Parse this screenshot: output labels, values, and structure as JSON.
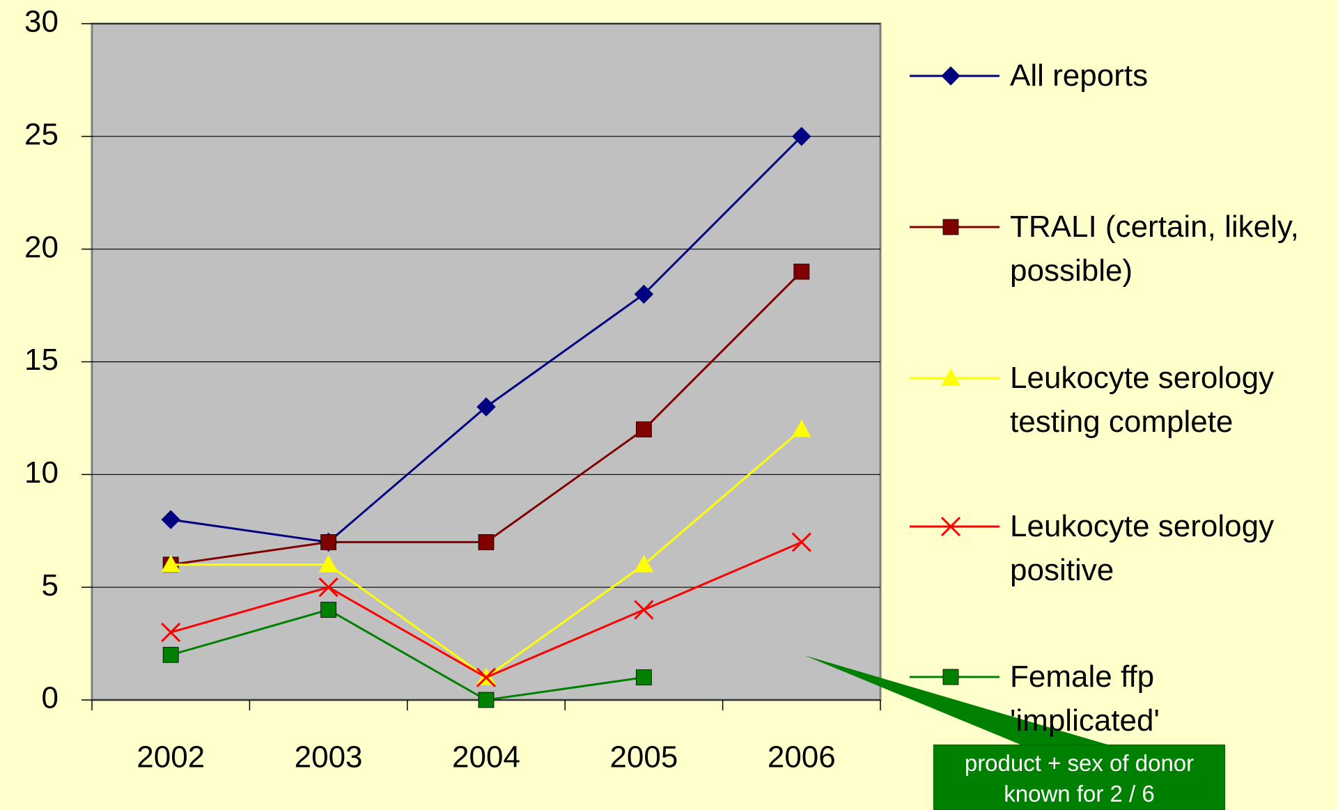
{
  "chart_data": {
    "type": "line",
    "categories": [
      "2002",
      "2003",
      "2004",
      "2005",
      "2006"
    ],
    "series": [
      {
        "name": "All reports",
        "color": "#000080",
        "marker": "diamond",
        "values": [
          8,
          7,
          13,
          18,
          25
        ]
      },
      {
        "name": "TRALI (certain, likely,\npossible)",
        "color": "#800000",
        "marker": "square",
        "values": [
          6,
          7,
          7,
          12,
          19
        ]
      },
      {
        "name": "Leukocyte serology\ntesting complete",
        "color": "#ffff00",
        "marker": "triangle",
        "values": [
          6,
          6,
          1,
          6,
          12
        ]
      },
      {
        "name": "Leukocyte serology\npositive",
        "color": "#ff0000",
        "marker": "x",
        "values": [
          3,
          5,
          1,
          4,
          7
        ]
      },
      {
        "name": "Female ffp\n'implicated'",
        "color": "#008000",
        "marker": "square",
        "values": [
          2,
          4,
          0,
          1,
          null
        ]
      }
    ],
    "ylim": [
      0,
      30
    ],
    "yticks": [
      0,
      5,
      10,
      15,
      20,
      25,
      30
    ],
    "grid": true,
    "legend": "right",
    "annotation": "product + sex of donor\nknown for 2 / 6"
  }
}
